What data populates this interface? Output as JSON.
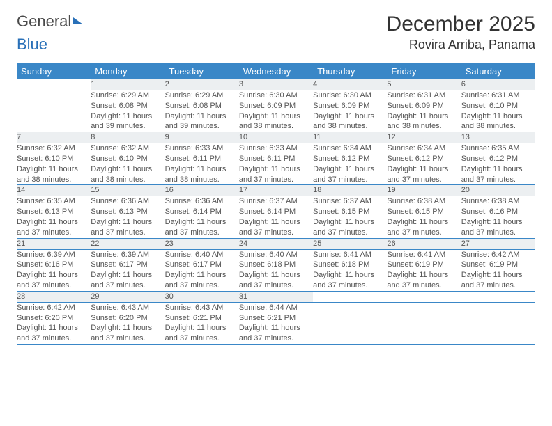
{
  "brand": {
    "part1": "General",
    "part2": "Blue"
  },
  "title": "December 2025",
  "location": "Rovira Arriba, Panama",
  "colors": {
    "header_bg": "#3a87c7",
    "header_text": "#ffffff",
    "daynum_bg": "#eceff1",
    "border": "#3a87c7",
    "text": "#555555",
    "brand_blue": "#2970b8",
    "page_bg": "#ffffff"
  },
  "typography": {
    "title_fontsize": 30,
    "location_fontsize": 18,
    "weekday_fontsize": 13,
    "daynum_fontsize": 12,
    "cell_fontsize": 11
  },
  "weekdays": [
    "Sunday",
    "Monday",
    "Tuesday",
    "Wednesday",
    "Thursday",
    "Friday",
    "Saturday"
  ],
  "weeks": [
    [
      {
        "num": "",
        "lines": [
          "",
          "",
          "",
          ""
        ]
      },
      {
        "num": "1",
        "lines": [
          "Sunrise: 6:29 AM",
          "Sunset: 6:08 PM",
          "Daylight: 11 hours",
          "and 39 minutes."
        ]
      },
      {
        "num": "2",
        "lines": [
          "Sunrise: 6:29 AM",
          "Sunset: 6:08 PM",
          "Daylight: 11 hours",
          "and 39 minutes."
        ]
      },
      {
        "num": "3",
        "lines": [
          "Sunrise: 6:30 AM",
          "Sunset: 6:09 PM",
          "Daylight: 11 hours",
          "and 38 minutes."
        ]
      },
      {
        "num": "4",
        "lines": [
          "Sunrise: 6:30 AM",
          "Sunset: 6:09 PM",
          "Daylight: 11 hours",
          "and 38 minutes."
        ]
      },
      {
        "num": "5",
        "lines": [
          "Sunrise: 6:31 AM",
          "Sunset: 6:09 PM",
          "Daylight: 11 hours",
          "and 38 minutes."
        ]
      },
      {
        "num": "6",
        "lines": [
          "Sunrise: 6:31 AM",
          "Sunset: 6:10 PM",
          "Daylight: 11 hours",
          "and 38 minutes."
        ]
      }
    ],
    [
      {
        "num": "7",
        "lines": [
          "Sunrise: 6:32 AM",
          "Sunset: 6:10 PM",
          "Daylight: 11 hours",
          "and 38 minutes."
        ]
      },
      {
        "num": "8",
        "lines": [
          "Sunrise: 6:32 AM",
          "Sunset: 6:10 PM",
          "Daylight: 11 hours",
          "and 38 minutes."
        ]
      },
      {
        "num": "9",
        "lines": [
          "Sunrise: 6:33 AM",
          "Sunset: 6:11 PM",
          "Daylight: 11 hours",
          "and 38 minutes."
        ]
      },
      {
        "num": "10",
        "lines": [
          "Sunrise: 6:33 AM",
          "Sunset: 6:11 PM",
          "Daylight: 11 hours",
          "and 37 minutes."
        ]
      },
      {
        "num": "11",
        "lines": [
          "Sunrise: 6:34 AM",
          "Sunset: 6:12 PM",
          "Daylight: 11 hours",
          "and 37 minutes."
        ]
      },
      {
        "num": "12",
        "lines": [
          "Sunrise: 6:34 AM",
          "Sunset: 6:12 PM",
          "Daylight: 11 hours",
          "and 37 minutes."
        ]
      },
      {
        "num": "13",
        "lines": [
          "Sunrise: 6:35 AM",
          "Sunset: 6:12 PM",
          "Daylight: 11 hours",
          "and 37 minutes."
        ]
      }
    ],
    [
      {
        "num": "14",
        "lines": [
          "Sunrise: 6:35 AM",
          "Sunset: 6:13 PM",
          "Daylight: 11 hours",
          "and 37 minutes."
        ]
      },
      {
        "num": "15",
        "lines": [
          "Sunrise: 6:36 AM",
          "Sunset: 6:13 PM",
          "Daylight: 11 hours",
          "and 37 minutes."
        ]
      },
      {
        "num": "16",
        "lines": [
          "Sunrise: 6:36 AM",
          "Sunset: 6:14 PM",
          "Daylight: 11 hours",
          "and 37 minutes."
        ]
      },
      {
        "num": "17",
        "lines": [
          "Sunrise: 6:37 AM",
          "Sunset: 6:14 PM",
          "Daylight: 11 hours",
          "and 37 minutes."
        ]
      },
      {
        "num": "18",
        "lines": [
          "Sunrise: 6:37 AM",
          "Sunset: 6:15 PM",
          "Daylight: 11 hours",
          "and 37 minutes."
        ]
      },
      {
        "num": "19",
        "lines": [
          "Sunrise: 6:38 AM",
          "Sunset: 6:15 PM",
          "Daylight: 11 hours",
          "and 37 minutes."
        ]
      },
      {
        "num": "20",
        "lines": [
          "Sunrise: 6:38 AM",
          "Sunset: 6:16 PM",
          "Daylight: 11 hours",
          "and 37 minutes."
        ]
      }
    ],
    [
      {
        "num": "21",
        "lines": [
          "Sunrise: 6:39 AM",
          "Sunset: 6:16 PM",
          "Daylight: 11 hours",
          "and 37 minutes."
        ]
      },
      {
        "num": "22",
        "lines": [
          "Sunrise: 6:39 AM",
          "Sunset: 6:17 PM",
          "Daylight: 11 hours",
          "and 37 minutes."
        ]
      },
      {
        "num": "23",
        "lines": [
          "Sunrise: 6:40 AM",
          "Sunset: 6:17 PM",
          "Daylight: 11 hours",
          "and 37 minutes."
        ]
      },
      {
        "num": "24",
        "lines": [
          "Sunrise: 6:40 AM",
          "Sunset: 6:18 PM",
          "Daylight: 11 hours",
          "and 37 minutes."
        ]
      },
      {
        "num": "25",
        "lines": [
          "Sunrise: 6:41 AM",
          "Sunset: 6:18 PM",
          "Daylight: 11 hours",
          "and 37 minutes."
        ]
      },
      {
        "num": "26",
        "lines": [
          "Sunrise: 6:41 AM",
          "Sunset: 6:19 PM",
          "Daylight: 11 hours",
          "and 37 minutes."
        ]
      },
      {
        "num": "27",
        "lines": [
          "Sunrise: 6:42 AM",
          "Sunset: 6:19 PM",
          "Daylight: 11 hours",
          "and 37 minutes."
        ]
      }
    ],
    [
      {
        "num": "28",
        "lines": [
          "Sunrise: 6:42 AM",
          "Sunset: 6:20 PM",
          "Daylight: 11 hours",
          "and 37 minutes."
        ]
      },
      {
        "num": "29",
        "lines": [
          "Sunrise: 6:43 AM",
          "Sunset: 6:20 PM",
          "Daylight: 11 hours",
          "and 37 minutes."
        ]
      },
      {
        "num": "30",
        "lines": [
          "Sunrise: 6:43 AM",
          "Sunset: 6:21 PM",
          "Daylight: 11 hours",
          "and 37 minutes."
        ]
      },
      {
        "num": "31",
        "lines": [
          "Sunrise: 6:44 AM",
          "Sunset: 6:21 PM",
          "Daylight: 11 hours",
          "and 37 minutes."
        ]
      },
      {
        "num": "",
        "lines": [
          "",
          "",
          "",
          ""
        ]
      },
      {
        "num": "",
        "lines": [
          "",
          "",
          "",
          ""
        ]
      },
      {
        "num": "",
        "lines": [
          "",
          "",
          "",
          ""
        ]
      }
    ]
  ]
}
